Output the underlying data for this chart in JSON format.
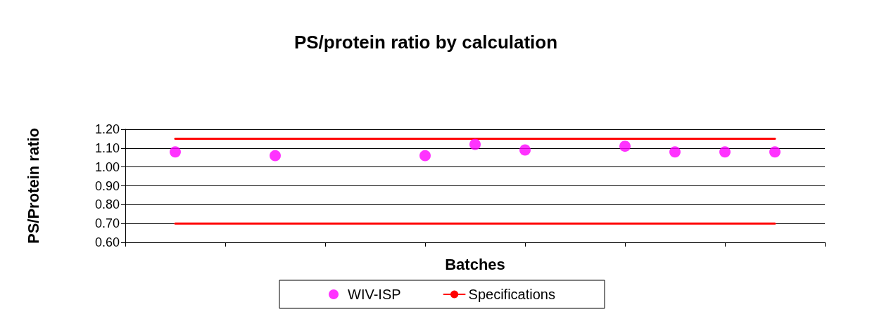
{
  "chart_data": {
    "type": "scatter",
    "title": "PS/protein ratio by calculation",
    "xlabel": "Batches",
    "ylabel": "PS/Protein ratio",
    "categories": [
      null,
      null,
      null,
      null,
      null,
      null,
      null,
      null,
      null,
      null,
      null,
      null,
      null,
      null,
      null
    ],
    "ylim": [
      0.6,
      1.2
    ],
    "yticks": [
      {
        "value": 0.6,
        "label": "0.60"
      },
      {
        "value": 0.7,
        "label": "0.70"
      },
      {
        "value": 0.8,
        "label": "0.80"
      },
      {
        "value": 0.9,
        "label": "0.90"
      },
      {
        "value": 1.0,
        "label": "1.00"
      },
      {
        "value": 1.1,
        "label": "1.10"
      },
      {
        "value": 1.2,
        "label": "1.20"
      }
    ],
    "grid": "y",
    "legend": "bottom",
    "marker": "circle",
    "series": [
      {
        "name": "WIV-ISP",
        "color": "#ff00ff",
        "values": [
          null,
          1.08,
          null,
          1.06,
          null,
          null,
          1.06,
          1.12,
          1.09,
          null,
          1.11,
          1.08,
          1.08,
          1.08,
          null
        ]
      },
      {
        "name": "Specifications",
        "type": "line",
        "color": "#ff0000",
        "line_style": "solid",
        "marker": "none",
        "values": [
          null,
          1.15,
          1.15,
          1.15,
          1.15,
          1.15,
          1.15,
          1.15,
          1.15,
          1.15,
          1.15,
          1.15,
          1.15,
          1.15,
          null
        ]
      },
      {
        "type": "line",
        "color": "#ff0000",
        "line_style": "solid",
        "marker": "none",
        "values": [
          null,
          0.7,
          0.7,
          0.7,
          0.7,
          0.7,
          0.7,
          0.7,
          0.7,
          0.7,
          0.7,
          0.7,
          0.7,
          0.7,
          null
        ]
      }
    ]
  }
}
